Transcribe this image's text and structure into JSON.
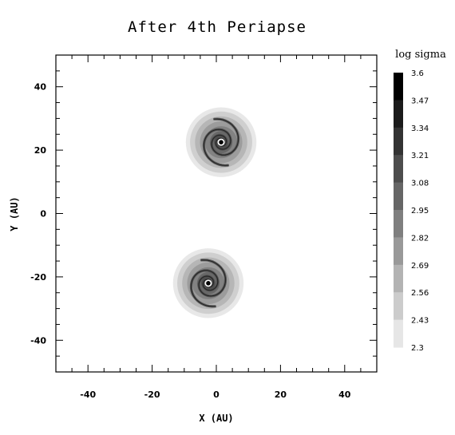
{
  "chart_data": {
    "type": "heatmap",
    "title": "After 4th Periapse",
    "xlabel": "X (AU)",
    "ylabel": "Y (AU)",
    "xlim": [
      -50,
      50
    ],
    "ylim": [
      -50,
      50
    ],
    "x_ticks": [
      "-40",
      "-20",
      "0",
      "20",
      "40"
    ],
    "y_ticks": [
      "-40",
      "-20",
      "0",
      "20",
      "40"
    ],
    "x_tick_values": [
      -40,
      -20,
      0,
      20,
      40
    ],
    "y_tick_values": [
      -40,
      -20,
      0,
      20,
      40
    ],
    "grid": false,
    "colorbar": {
      "label": "log sigma",
      "ticks": [
        "3.6",
        "3.47",
        "3.34",
        "3.21",
        "3.08",
        "2.95",
        "2.82",
        "2.69",
        "2.56",
        "2.43",
        "2.3"
      ],
      "min": 2.3,
      "max": 3.6,
      "colors": [
        "#000000",
        "#1b1b1b",
        "#333333",
        "#4d4d4d",
        "#666666",
        "#7f7f7f",
        "#999999",
        "#b3b3b3",
        "#cccccc",
        "#e6e6e6"
      ]
    },
    "disks": [
      {
        "center": [
          1.5,
          22.5
        ],
        "radius": 11,
        "arm_rotation_deg": 0
      },
      {
        "center": [
          -2.5,
          -22
        ],
        "radius": 11,
        "arm_rotation_deg": 180
      }
    ]
  }
}
